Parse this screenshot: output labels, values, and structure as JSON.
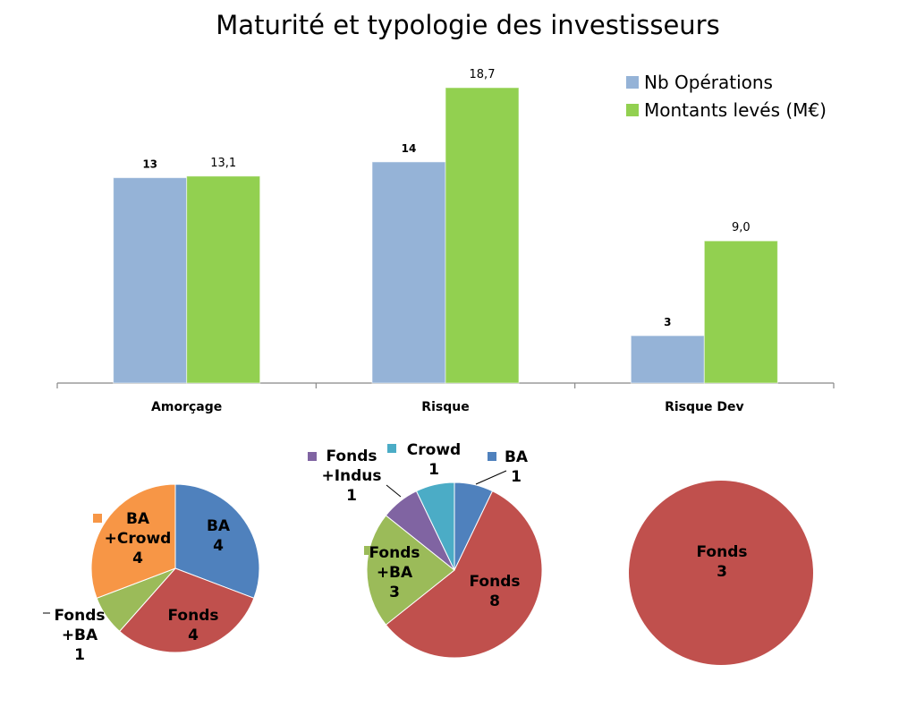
{
  "chart_data": [
    {
      "type": "bar",
      "title": "Maturité et typologie des investisseurs",
      "categories": [
        "Amorçage",
        "Risque",
        "Risque Dev"
      ],
      "series": [
        {
          "name": "Nb Opérations",
          "values": [
            13,
            14,
            3
          ],
          "labels": [
            "13",
            "14",
            "3"
          ],
          "color": "#95b3d7"
        },
        {
          "name": "Montants levés (M€)",
          "values": [
            13.1,
            18.7,
            9.0
          ],
          "labels": [
            "13,1",
            "18,7",
            "9,0"
          ],
          "color": "#92d050"
        }
      ],
      "ylim": [
        0,
        20
      ],
      "grid": false,
      "legend": "top-right"
    },
    {
      "type": "pie",
      "category": "Amorçage",
      "slices": [
        {
          "lines": [
            "BA",
            "4"
          ],
          "value": 4,
          "color": "#4f81bd"
        },
        {
          "lines": [
            "Fonds",
            "4"
          ],
          "value": 4,
          "color": "#c0504d"
        },
        {
          "lines": [
            "Fonds",
            "+BA",
            "1"
          ],
          "value": 1,
          "color": "#9bbb59"
        },
        {
          "lines": [
            "BA",
            "+Crowd",
            "4"
          ],
          "value": 4,
          "color": "#f79646"
        }
      ]
    },
    {
      "type": "pie",
      "category": "Risque",
      "slices": [
        {
          "lines": [
            "BA",
            "1"
          ],
          "value": 1,
          "color": "#4f81bd"
        },
        {
          "lines": [
            "Fonds",
            "8"
          ],
          "value": 8,
          "color": "#c0504d"
        },
        {
          "lines": [
            "Fonds",
            "+BA",
            "3"
          ],
          "value": 3,
          "color": "#9bbb59"
        },
        {
          "lines": [
            "Fonds",
            "+Indus",
            "1"
          ],
          "value": 1,
          "color": "#8064a2"
        },
        {
          "lines": [
            "Crowd",
            "1"
          ],
          "value": 1,
          "color": "#4bacc6"
        }
      ]
    },
    {
      "type": "pie",
      "category": "Risque Dev",
      "slices": [
        {
          "lines": [
            "Fonds",
            "3"
          ],
          "value": 3,
          "color": "#c0504d"
        }
      ]
    }
  ]
}
